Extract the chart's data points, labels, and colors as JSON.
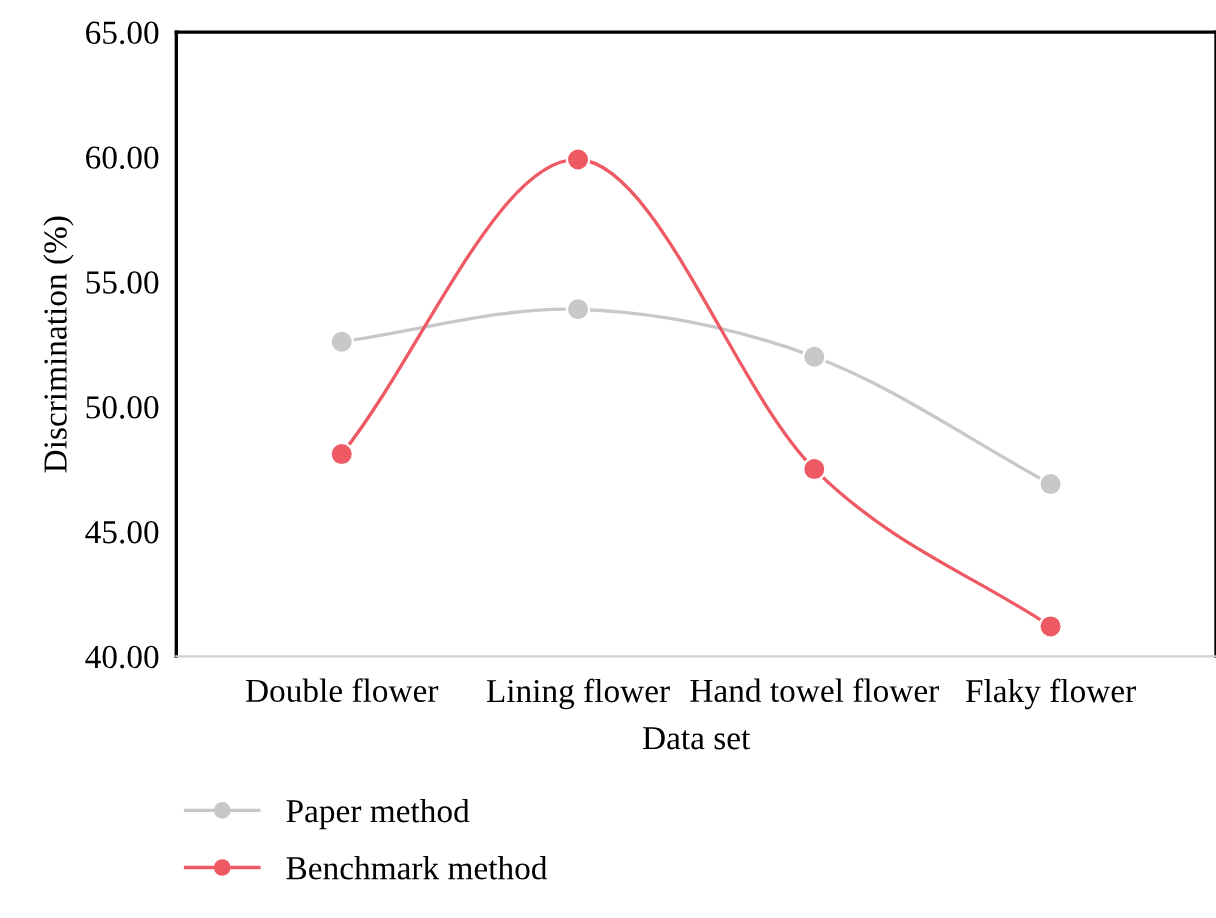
{
  "chart_data": {
    "type": "line",
    "xlabel": "Data set",
    "ylabel": "Discrimination (%)",
    "categories": [
      "Double flower",
      "Lining flower",
      "Hand towel flower",
      "Flaky flower"
    ],
    "series": [
      {
        "name": "Paper method",
        "color": "#c8c8c8",
        "values": [
          52.6,
          53.9,
          52.0,
          46.9
        ]
      },
      {
        "name": "Benchmark method",
        "color": "#ee5a64",
        "values": [
          48.1,
          59.9,
          47.5,
          41.2
        ]
      }
    ],
    "ylim": [
      40,
      65
    ],
    "yticks": [
      {
        "value": 40,
        "label": "40.00"
      },
      {
        "value": 45,
        "label": "45.00"
      },
      {
        "value": 50,
        "label": "50.00"
      },
      {
        "value": 55,
        "label": "55.00"
      },
      {
        "value": 60,
        "label": "60.00"
      },
      {
        "value": 65,
        "label": "65.00"
      }
    ],
    "grid": false,
    "legend": "bottom left",
    "marker": "circle",
    "line_style": "solid"
  }
}
